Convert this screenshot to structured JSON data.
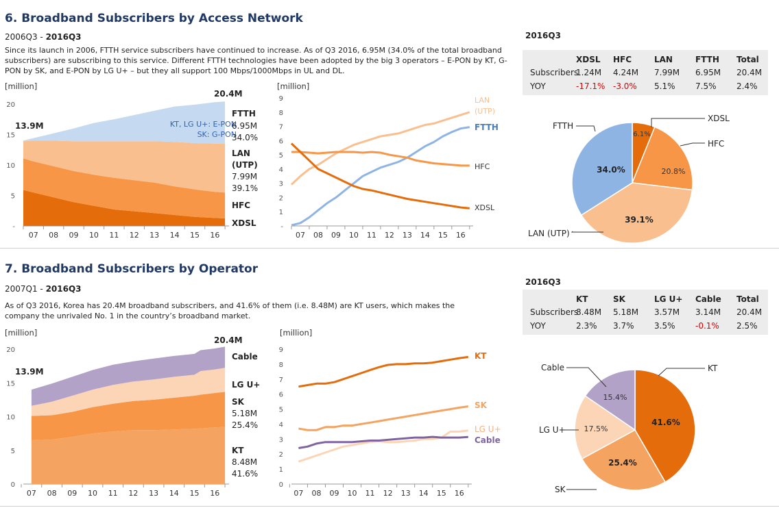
{
  "section6": {
    "title": "6. Broadband Subscribers by Access Network",
    "period_start": "2006Q3 - ",
    "period_end": "2016Q3",
    "desc_lines": [
      "Since its launch in 2006, FTTH service subscribers have continued to increase. As of Q3 2016, 6.95M (34.0% of the total broadband",
      "subscribers) are subscribing to this service. Different FTTH technologies have been adopted by the big 3 operators – E-PON by KT, G-",
      "PON by SK, and E-PON by LG U+ – but they all support 100 Mbps/1000Mbps in UL and DL."
    ],
    "table_title": "2016Q3",
    "table": {
      "headers": [
        "XDSL",
        "HFC",
        "LAN",
        "FTTH",
        "Total"
      ],
      "rows": [
        {
          "label": "Subscribers",
          "cells": [
            "1.24M",
            "4.24M",
            "7.99M",
            "6.95M",
            "20.4M"
          ]
        },
        {
          "label": "YOY",
          "cells": [
            "-17.1%",
            "-3.0%",
            "5.1%",
            "7.5%",
            "2.4%"
          ]
        }
      ]
    }
  },
  "section7": {
    "title": "7. Broadband Subscribers by Operator",
    "period_start": "2007Q1 - ",
    "period_end": "2016Q3",
    "desc_lines": [
      "As of Q3 2016, Korea has 20.4M broadband subscribers, and 41.6% of them (i.e. 8.48M) are KT users, which makes the",
      "company the unrivaled No. 1 in the country’s broadband market."
    ],
    "table_title": "2016Q3",
    "table": {
      "headers": [
        "KT",
        "SK",
        "LG U+",
        "Cable",
        "Total"
      ],
      "rows": [
        {
          "label": "Subscribers",
          "cells": [
            "8.48M",
            "5.18M",
            "3.57M",
            "3.14M",
            "20.4M"
          ]
        },
        {
          "label": "YOY",
          "cells": [
            "2.3%",
            "3.7%",
            "3.5%",
            "-0.1%",
            "2.5%"
          ]
        }
      ]
    }
  },
  "colors": {
    "ftth": "#8eb4e3",
    "ftth_area": "#c5d9f1",
    "lan": "#f9bf8f",
    "hfc": "#f79646",
    "xdsl": "#e46c0a",
    "kt": "#e46c0a",
    "sk": "#f4a460",
    "lgu": "#fbd5b5",
    "cable": "#b3a2c7",
    "cable_line": "#8064a2",
    "negative": "#e00000"
  },
  "chart_data": [
    {
      "id": "c6a",
      "type": "area",
      "stacked": true,
      "ylabel": "[million]",
      "ylim": [
        0,
        20
      ],
      "yticks": [
        "-",
        "5",
        "10",
        "15",
        "20"
      ],
      "categories": [
        "07",
        "08",
        "09",
        "10",
        "11",
        "12",
        "13",
        "14",
        "15",
        "16"
      ],
      "x": [
        2006.5,
        2007,
        2008,
        2009,
        2010,
        2011,
        2012,
        2013,
        2014,
        2015,
        2016,
        2016.5
      ],
      "series": [
        {
          "name": "XDSL",
          "values": [
            5.9,
            5.5,
            4.7,
            3.9,
            3.3,
            2.7,
            2.4,
            2.1,
            1.8,
            1.5,
            1.3,
            1.24
          ]
        },
        {
          "name": "HFC",
          "values": [
            5.2,
            5.1,
            5.1,
            5.1,
            5.1,
            5.2,
            5.1,
            5.0,
            4.7,
            4.5,
            4.3,
            4.24
          ]
        },
        {
          "name": "LAN (UTP)",
          "values": [
            2.8,
            3.4,
            4.2,
            4.9,
            5.5,
            6.0,
            6.4,
            6.8,
            7.3,
            7.6,
            7.9,
            7.99
          ]
        },
        {
          "name": "FTTH",
          "values": [
            0.1,
            0.4,
            1.2,
            2.1,
            3.0,
            3.6,
            4.3,
            5.0,
            5.8,
            6.3,
            6.8,
            6.95
          ]
        }
      ],
      "labels": {
        "start_total": "13.9M",
        "end_total": "20.4M",
        "ftth_note_1": "KT, LG U+: E-PON",
        "ftth_note_2": "SK: G-PON",
        "ftth": [
          "FTTH",
          "6.95M",
          "34.0%"
        ],
        "lan": [
          "LAN",
          "(UTP)",
          "7.99M",
          "39.1%"
        ],
        "hfc": "HFC",
        "xdsl": "XDSL"
      }
    },
    {
      "id": "c6b",
      "type": "line",
      "ylabel": "[million]",
      "ylim": [
        0,
        9
      ],
      "yticks": [
        "-",
        "1",
        "2",
        "3",
        "4",
        "5",
        "6",
        "7",
        "8",
        "9"
      ],
      "categories": [
        "07",
        "08",
        "09",
        "10",
        "11",
        "12",
        "13",
        "14",
        "15",
        "16"
      ],
      "x": [
        2006.5,
        2007,
        2007.5,
        2008,
        2008.5,
        2009,
        2009.5,
        2010,
        2010.5,
        2011,
        2011.5,
        2012,
        2012.5,
        2013,
        2013.5,
        2014,
        2014.5,
        2015,
        2015.5,
        2016,
        2016.5
      ],
      "series": [
        {
          "name": "LAN (UTP)",
          "values": [
            2.9,
            3.5,
            4.0,
            4.3,
            4.7,
            5.1,
            5.4,
            5.7,
            5.9,
            6.1,
            6.3,
            6.4,
            6.5,
            6.7,
            6.9,
            7.1,
            7.2,
            7.4,
            7.6,
            7.8,
            8.0
          ]
        },
        {
          "name": "FTTH",
          "values": [
            0.05,
            0.2,
            0.6,
            1.1,
            1.6,
            2.0,
            2.5,
            3.0,
            3.5,
            3.8,
            4.1,
            4.3,
            4.5,
            4.8,
            5.2,
            5.6,
            5.9,
            6.3,
            6.6,
            6.85,
            6.95
          ]
        },
        {
          "name": "HFC",
          "values": [
            5.2,
            5.2,
            5.15,
            5.1,
            5.15,
            5.2,
            5.2,
            5.2,
            5.15,
            5.2,
            5.15,
            5.0,
            4.9,
            4.8,
            4.6,
            4.5,
            4.4,
            4.35,
            4.3,
            4.25,
            4.24
          ]
        },
        {
          "name": "XDSL",
          "values": [
            5.8,
            5.2,
            4.6,
            4.0,
            3.7,
            3.4,
            3.1,
            2.8,
            2.6,
            2.5,
            2.35,
            2.2,
            2.05,
            1.9,
            1.8,
            1.7,
            1.6,
            1.5,
            1.4,
            1.3,
            1.24
          ]
        }
      ],
      "labels": {
        "lan": [
          "LAN",
          "(UTP)"
        ],
        "ftth": "FTTH",
        "hfc": "HFC",
        "xdsl": "XDSL"
      }
    },
    {
      "id": "p6",
      "type": "pie",
      "slices": [
        {
          "name": "XDSL",
          "value": 6.1,
          "label": "6.1%"
        },
        {
          "name": "HFC",
          "value": 20.8,
          "label": "20.8%"
        },
        {
          "name": "LAN (UTP)",
          "value": 39.1,
          "label": "39.1%"
        },
        {
          "name": "FTTH",
          "value": 34.0,
          "label": "34.0%"
        }
      ]
    },
    {
      "id": "c7a",
      "type": "area",
      "stacked": true,
      "ylabel": "[million]",
      "ylim": [
        0,
        20
      ],
      "yticks": [
        "0",
        "5",
        "10",
        "15",
        "20"
      ],
      "categories": [
        "07",
        "08",
        "09",
        "10",
        "11",
        "12",
        "13",
        "14",
        "15",
        "16"
      ],
      "x": [
        2007,
        2008,
        2009,
        2010,
        2011,
        2012,
        2013,
        2014,
        2015,
        2015.3,
        2016,
        2016.5
      ],
      "series": [
        {
          "name": "KT",
          "values": [
            6.5,
            6.6,
            7.0,
            7.5,
            7.8,
            8.0,
            8.0,
            8.1,
            8.2,
            8.25,
            8.4,
            8.48
          ]
        },
        {
          "name": "SK",
          "values": [
            3.6,
            3.6,
            3.7,
            3.9,
            4.1,
            4.3,
            4.5,
            4.7,
            4.9,
            5.0,
            5.1,
            5.18
          ]
        },
        {
          "name": "LG U+",
          "values": [
            1.5,
            2.0,
            2.4,
            2.6,
            2.8,
            2.9,
            3.0,
            3.1,
            3.1,
            3.5,
            3.5,
            3.57
          ]
        },
        {
          "name": "Cable",
          "values": [
            2.4,
            2.7,
            2.8,
            2.9,
            3.0,
            3.0,
            3.1,
            3.1,
            3.1,
            3.1,
            3.1,
            3.14
          ]
        }
      ],
      "labels": {
        "start_total": "13.9M",
        "end_total": "20.4M",
        "cable": "Cable",
        "lgu": "LG U+",
        "sk": [
          "SK",
          "5.18M",
          "25.4%"
        ],
        "kt": [
          "KT",
          "8.48M",
          "41.6%"
        ]
      }
    },
    {
      "id": "c7b",
      "type": "line",
      "ylabel": "[million]",
      "ylim": [
        0,
        9
      ],
      "yticks": [
        "0",
        "1",
        "2",
        "3",
        "4",
        "5",
        "6",
        "7",
        "8",
        "9"
      ],
      "categories": [
        "07",
        "08",
        "09",
        "10",
        "11",
        "12",
        "13",
        "14",
        "15",
        "16"
      ],
      "x": [
        2007,
        2007.5,
        2008,
        2008.5,
        2009,
        2009.5,
        2010,
        2010.5,
        2011,
        2011.5,
        2012,
        2012.5,
        2013,
        2013.5,
        2014,
        2014.5,
        2015,
        2015.5,
        2016,
        2016.5
      ],
      "series": [
        {
          "name": "KT",
          "values": [
            6.5,
            6.6,
            6.7,
            6.7,
            6.8,
            7.0,
            7.2,
            7.4,
            7.6,
            7.8,
            7.95,
            8.0,
            8.0,
            8.05,
            8.05,
            8.1,
            8.2,
            8.3,
            8.4,
            8.48
          ]
        },
        {
          "name": "SK",
          "values": [
            3.7,
            3.6,
            3.6,
            3.8,
            3.8,
            3.9,
            3.9,
            4.0,
            4.1,
            4.2,
            4.3,
            4.4,
            4.5,
            4.6,
            4.7,
            4.8,
            4.9,
            5.0,
            5.1,
            5.18
          ]
        },
        {
          "name": "LG U+",
          "values": [
            1.5,
            1.7,
            1.9,
            2.1,
            2.3,
            2.5,
            2.6,
            2.7,
            2.8,
            2.85,
            2.8,
            2.8,
            2.85,
            2.9,
            3.0,
            3.0,
            3.1,
            3.5,
            3.5,
            3.57
          ]
        },
        {
          "name": "Cable",
          "values": [
            2.4,
            2.5,
            2.7,
            2.8,
            2.8,
            2.8,
            2.8,
            2.85,
            2.9,
            2.9,
            2.95,
            3.0,
            3.05,
            3.1,
            3.1,
            3.15,
            3.1,
            3.1,
            3.1,
            3.14
          ]
        }
      ],
      "labels": {
        "kt": "KT",
        "sk": "SK",
        "lgu": "LG U+",
        "cable": "Cable"
      }
    },
    {
      "id": "p7",
      "type": "pie",
      "slices": [
        {
          "name": "KT",
          "value": 41.6,
          "label": "41.6%"
        },
        {
          "name": "SK",
          "value": 25.4,
          "label": "25.4%"
        },
        {
          "name": "LG U+",
          "value": 17.5,
          "label": "17.5%"
        },
        {
          "name": "Cable",
          "value": 15.4,
          "label": "15.4%"
        }
      ]
    }
  ]
}
